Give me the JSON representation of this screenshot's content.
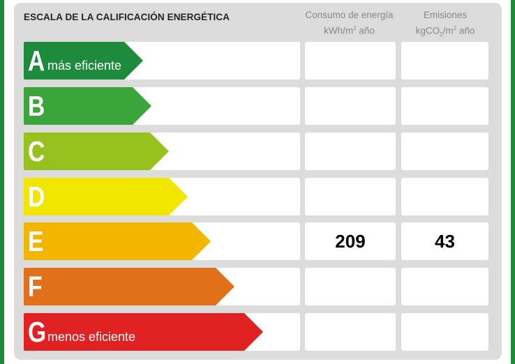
{
  "header": {
    "title": "ESCALA DE LA CALIFICACIÓN ENERGÉTICA",
    "col1_line1": "Consumo de energía",
    "col1_line2_pre": "kWh/m",
    "col1_line2_sup": "2",
    "col1_line2_post": " año",
    "col2_line1": "Emisiones",
    "col2_line2_pre": "kgCO",
    "col2_line2_sub": "2",
    "col2_line2_mid": "/m",
    "col2_line2_sup": "2",
    "col2_line2_post": " año"
  },
  "rows": [
    {
      "letter": "A",
      "label": "más eficiente",
      "color": "#1e8a3b",
      "consumo": "",
      "emisiones": ""
    },
    {
      "letter": "B",
      "label": "",
      "color": "#3aa53a",
      "consumo": "",
      "emisiones": ""
    },
    {
      "letter": "C",
      "label": "",
      "color": "#96c11f",
      "consumo": "",
      "emisiones": ""
    },
    {
      "letter": "D",
      "label": "",
      "color": "#f0e600",
      "consumo": "",
      "emisiones": ""
    },
    {
      "letter": "E",
      "label": "",
      "color": "#f3b500",
      "consumo": "209",
      "emisiones": "43"
    },
    {
      "letter": "F",
      "label": "",
      "color": "#e1701a",
      "consumo": "",
      "emisiones": ""
    },
    {
      "letter": "G",
      "label": "menos eficiente",
      "color": "#e02322",
      "consumo": "",
      "emisiones": ""
    }
  ]
}
